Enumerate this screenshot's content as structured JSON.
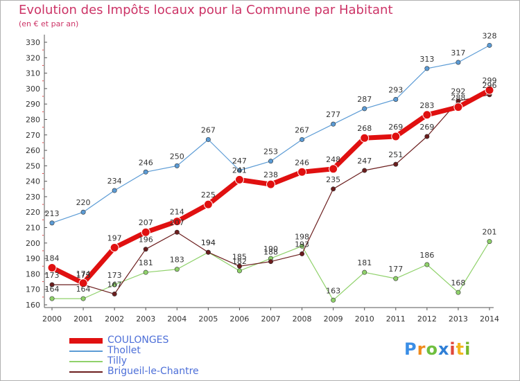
{
  "title": "Evolution des Impôts locaux pour la Commune par Habitant",
  "subtitle": "(en € et par an)",
  "logo": {
    "text": "Proxiti",
    "colors": [
      "#3a8ee6",
      "#f08a1c",
      "#6fbf3f",
      "#2f7fd6",
      "#e0483a",
      "#f2b61f",
      "#76b82a"
    ]
  },
  "chart_data": {
    "type": "line",
    "title": "Evolution des Impôts locaux pour la Commune par Habitant",
    "ylabel": "(en € et par an)",
    "x": [
      "2000",
      "2001",
      "2002",
      "2003",
      "2004",
      "2005",
      "2006",
      "2007",
      "2008",
      "2009",
      "2010",
      "2011",
      "2012",
      "2013",
      "2014"
    ],
    "ylim": [
      160,
      330
    ],
    "yticks": [
      160,
      170,
      180,
      190,
      200,
      210,
      220,
      230,
      240,
      250,
      260,
      270,
      280,
      290,
      300,
      310,
      320,
      330
    ],
    "grid": false,
    "legend_position": "bottom-left",
    "series": [
      {
        "name": "COULONGES",
        "color": "#e01010",
        "values": [
          184,
          174,
          197,
          207,
          214,
          225,
          241,
          238,
          246,
          248,
          268,
          269,
          283,
          288,
          299
        ]
      },
      {
        "name": "Thollet",
        "color": "#5b9bd5",
        "values": [
          213,
          220,
          234,
          246,
          250,
          267,
          247,
          253,
          267,
          277,
          287,
          293,
          313,
          317,
          328
        ]
      },
      {
        "name": "Tilly",
        "color": "#8fd16a",
        "values": [
          164,
          164,
          173,
          181,
          183,
          194,
          182,
          190,
          198,
          163,
          181,
          177,
          186,
          168,
          201
        ]
      },
      {
        "name": "Brigueil-le-Chantre",
        "color": "#6b1d1d",
        "values": [
          173,
          173,
          167,
          196,
          207,
          194,
          185,
          188,
          193,
          235,
          247,
          251,
          269,
          292,
          296
        ]
      }
    ]
  }
}
